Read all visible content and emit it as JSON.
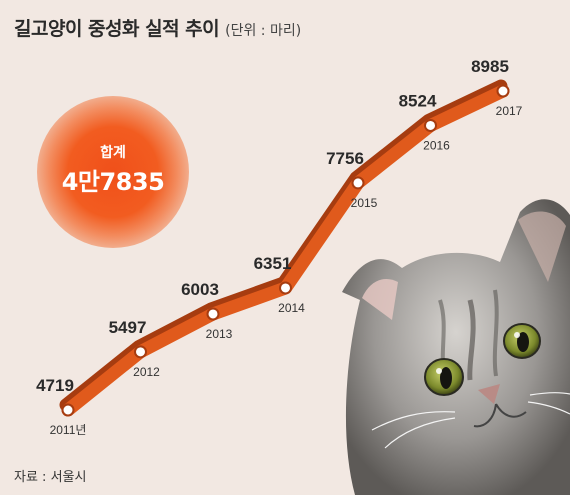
{
  "header": {
    "title": "길고양이 중성화 실적 추이",
    "unit": "(단위 : 마리)"
  },
  "total": {
    "label": "합계",
    "value": "4만7835"
  },
  "source": "자료 : 서울시",
  "colors": {
    "line": "#e05a1c",
    "line_shadow": "#a63c10",
    "background": "#f2e8e2",
    "text": "#2a2a2a"
  },
  "chart_data": {
    "type": "line",
    "title": "길고양이 중성화 실적 추이",
    "unit": "(단위 : 마리)",
    "categories": [
      "2011년",
      "2012",
      "2013",
      "2014",
      "2015",
      "2016",
      "2017"
    ],
    "x": [
      2011,
      2012,
      2013,
      2014,
      2015,
      2016,
      2017
    ],
    "series": [
      {
        "values": [
          4719,
          5497,
          6003,
          6351,
          7756,
          8524,
          8985
        ]
      }
    ],
    "value_labels": [
      "4719",
      "5497",
      "6003",
      "6351",
      "7756",
      "8524",
      "8985"
    ],
    "grid": false,
    "legend": "none"
  }
}
